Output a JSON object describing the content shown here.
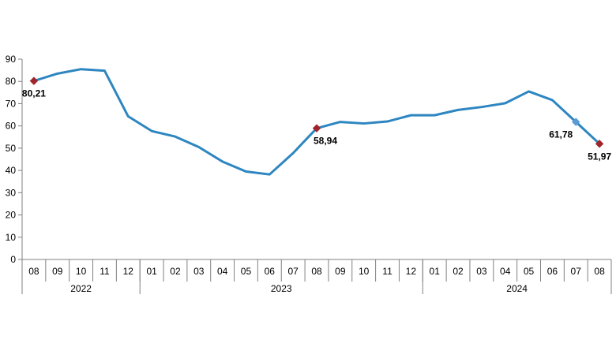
{
  "chart_data": {
    "type": "line",
    "title": "",
    "xlabel": "",
    "ylabel": "",
    "ylim": [
      0,
      90
    ],
    "yticks": [
      0,
      10,
      20,
      30,
      40,
      50,
      60,
      70,
      80,
      90
    ],
    "grid": false,
    "legend": "none",
    "categories": [
      "08",
      "09",
      "10",
      "11",
      "12",
      "01",
      "02",
      "03",
      "04",
      "05",
      "06",
      "07",
      "08",
      "09",
      "10",
      "11",
      "12",
      "01",
      "02",
      "03",
      "04",
      "05",
      "06",
      "07",
      "08"
    ],
    "years": [
      {
        "label": "2022",
        "start": 0,
        "end": 4
      },
      {
        "label": "2023",
        "start": 5,
        "end": 16
      },
      {
        "label": "2024",
        "start": 17,
        "end": 24
      }
    ],
    "series": [
      {
        "color": "#2e86c1",
        "values": [
          80.21,
          83.5,
          85.5,
          84.8,
          64.3,
          57.7,
          55.2,
          50.5,
          44.0,
          39.5,
          38.2,
          47.8,
          58.94,
          61.8,
          61.1,
          62.0,
          64.8,
          64.8,
          67.2,
          68.5,
          70.2,
          75.5,
          71.6,
          61.78,
          51.97
        ]
      }
    ],
    "annotations": [
      {
        "index": 0,
        "label": "80,21",
        "position": "below"
      },
      {
        "index": 12,
        "label": "58,94",
        "position": "below-right"
      },
      {
        "index": 23,
        "label": "61,78",
        "position": "below-left"
      },
      {
        "index": 24,
        "label": "51,97",
        "position": "below"
      }
    ],
    "marker_color": "#a0242c",
    "marker_color_alt": "#5b9bd5"
  }
}
